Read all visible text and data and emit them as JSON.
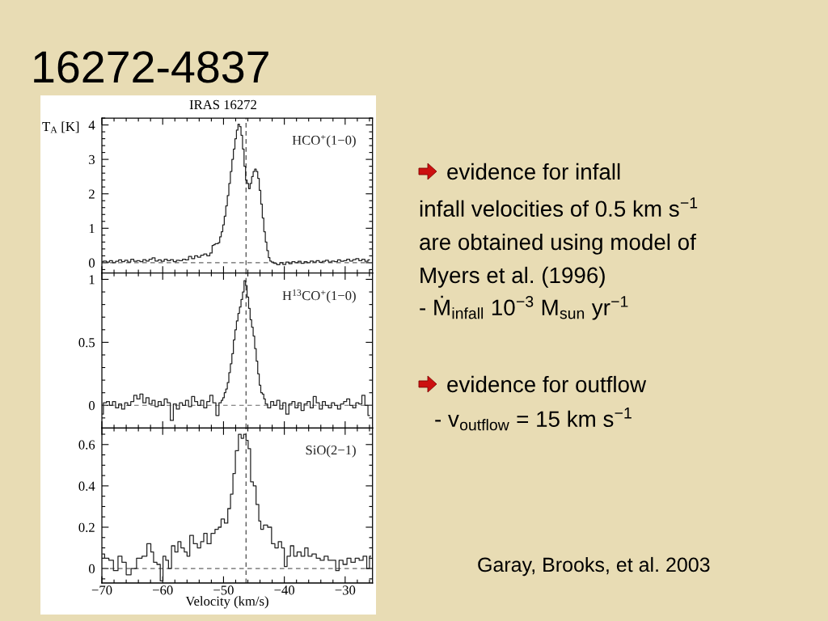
{
  "chart_data": [
    {
      "type": "step",
      "title": "IRAS 16272",
      "ylabel": "T$_{A}$ [K]",
      "series": [
        {
          "name": "HCO$^{+}$(1−0)",
          "color": "#222222",
          "x": [
            -70,
            -69.5,
            -69,
            -68.5,
            -68,
            -67.5,
            -67,
            -66.5,
            -66,
            -65.5,
            -65,
            -64.5,
            -64,
            -63.5,
            -63,
            -62.5,
            -62,
            -61.5,
            -61,
            -60.5,
            -60,
            -59.5,
            -59,
            -58.5,
            -58,
            -57.5,
            -57,
            -56.5,
            -56,
            -55.5,
            -55,
            -54.5,
            -54,
            -53.5,
            -53,
            -52.5,
            -52,
            -51.75,
            -51.5,
            -51.25,
            -51,
            -50.75,
            -50.5,
            -50.25,
            -50,
            -49.75,
            -49.5,
            -49.25,
            -49,
            -48.75,
            -48.5,
            -48.25,
            -48,
            -47.75,
            -47.5,
            -47.25,
            -47,
            -46.75,
            -46.5,
            -46.25,
            -46,
            -45.75,
            -45.5,
            -45.25,
            -45,
            -44.75,
            -44.5,
            -44.25,
            -44,
            -43.75,
            -43.5,
            -43.25,
            -43,
            -42.75,
            -42.5,
            -42.25,
            -42,
            -41.5,
            -41,
            -40.5,
            -40,
            -39.5,
            -39,
            -38.5,
            -38,
            -37.5,
            -37,
            -36.5,
            -36,
            -35.5,
            -35,
            -34.5,
            -34,
            -33.5,
            -33,
            -32.5,
            -32,
            -31.5,
            -31,
            -30.5,
            -30,
            -29.5,
            -29,
            -28.5,
            -28,
            -27.5,
            -27,
            -26.5,
            -26
          ],
          "values": [
            0.03,
            0.05,
            0.02,
            0.06,
            0.0,
            0.04,
            0.08,
            0.03,
            0.07,
            0.02,
            0.1,
            0.04,
            0.06,
            0.03,
            0.09,
            0.05,
            0.1,
            0.14,
            0.05,
            0.08,
            0.04,
            0.1,
            0.06,
            0.09,
            0.03,
            0.07,
            0.06,
            0.1,
            0.08,
            0.18,
            0.12,
            0.2,
            0.16,
            0.22,
            0.25,
            0.2,
            0.28,
            0.5,
            0.52,
            0.55,
            0.55,
            0.58,
            0.75,
            0.9,
            1.1,
            1.35,
            1.65,
            1.95,
            2.3,
            2.65,
            3.0,
            3.3,
            3.6,
            3.85,
            4.02,
            3.95,
            3.7,
            3.3,
            2.8,
            2.4,
            2.3,
            2.15,
            2.3,
            2.5,
            2.65,
            2.72,
            2.65,
            2.45,
            2.1,
            1.7,
            1.3,
            0.9,
            0.6,
            0.35,
            0.15,
            0.05,
            0.02,
            -0.02,
            -0.06,
            0.0,
            -0.05,
            0.02,
            -0.03,
            0.03,
            0.0,
            0.04,
            -0.02,
            0.03,
            0.0,
            0.05,
            0.02,
            0.06,
            0.01,
            0.04,
            0.07,
            0.02,
            0.05,
            0.03,
            0.08,
            0.04,
            0.06,
            0.1,
            0.05,
            0.09,
            0.12,
            0.06,
            0.1,
            0.04,
            0.08
          ]
        }
      ],
      "xlim": [
        -70,
        -25.5
      ],
      "xticks": [
        {
          "value": -70,
          "label": null
        },
        {
          "value": -60,
          "label": null
        },
        {
          "value": -50,
          "label": null
        },
        {
          "value": -40,
          "label": null
        },
        {
          "value": -30,
          "label": null
        }
      ],
      "ylim": [
        -0.3,
        4.2
      ],
      "yticks": [
        0,
        1,
        2,
        3,
        4
      ],
      "tick_labels": "y",
      "ref_lines": [
        {
          "axis": "x",
          "value": -46.3,
          "color": "#333333",
          "line_style": "dashed"
        },
        {
          "axis": "y",
          "value": 0,
          "color": "#666666",
          "line_style": "dashed"
        }
      ]
    },
    {
      "type": "step",
      "series": [
        {
          "name": "H$^{13}$CO$^{+}$(1−0)",
          "color": "#222222",
          "x": [
            -70,
            -69.5,
            -69,
            -68.5,
            -68,
            -67.5,
            -67,
            -66.5,
            -66,
            -65.5,
            -65,
            -64.5,
            -64,
            -63.5,
            -63,
            -62.5,
            -62,
            -61.5,
            -61,
            -60.5,
            -60,
            -59.5,
            -59,
            -58.5,
            -58,
            -57.5,
            -57,
            -56.5,
            -56,
            -55.5,
            -55,
            -54.5,
            -54,
            -53.5,
            -53,
            -52.5,
            -52,
            -51.5,
            -51,
            -50.5,
            -50.25,
            -50,
            -49.75,
            -49.5,
            -49.25,
            -49,
            -48.75,
            -48.5,
            -48.25,
            -48,
            -47.75,
            -47.5,
            -47.25,
            -47,
            -46.75,
            -46.5,
            -46.25,
            -46,
            -45.75,
            -45.5,
            -45.25,
            -45,
            -44.75,
            -44.5,
            -44.25,
            -44,
            -43.75,
            -43.5,
            -43.25,
            -43,
            -42.5,
            -42,
            -41.5,
            -41,
            -40.5,
            -40,
            -39.5,
            -39,
            -38.5,
            -38,
            -37.5,
            -37,
            -36.5,
            -36,
            -35.5,
            -35,
            -34.5,
            -34,
            -33.5,
            -33,
            -32.5,
            -32,
            -31.5,
            -31,
            -30.5,
            -30,
            -29.5,
            -29,
            -28.5,
            -28,
            -27.5,
            -27,
            -26.5,
            -26
          ],
          "values": [
            -0.07,
            0.02,
            0.03,
            0.0,
            0.03,
            -0.02,
            0.01,
            -0.03,
            0.02,
            0.0,
            0.03,
            0.08,
            0.05,
            0.09,
            0.02,
            0.06,
            0.01,
            0.04,
            -0.01,
            0.03,
            0.0,
            0.05,
            0.02,
            -0.12,
            0.01,
            -0.03,
            0.02,
            0.0,
            0.04,
            -0.01,
            0.07,
            0.03,
            0.0,
            0.04,
            -0.02,
            0.03,
            0.08,
            0.02,
            -0.08,
            0.02,
            0.04,
            0.06,
            0.1,
            0.13,
            0.18,
            0.26,
            0.33,
            0.41,
            0.52,
            0.6,
            0.67,
            0.73,
            0.78,
            0.84,
            0.9,
            0.99,
            0.95,
            0.86,
            0.77,
            0.68,
            0.62,
            0.55,
            0.45,
            0.35,
            0.25,
            0.16,
            0.1,
            0.09,
            0.05,
            0.01,
            -0.02,
            0.03,
            0.0,
            0.04,
            -0.03,
            0.02,
            -0.07,
            0.01,
            0.03,
            -0.02,
            0.02,
            -0.04,
            0.01,
            0.03,
            -0.02,
            0.07,
            0.02,
            -0.03,
            0.03,
            0.0,
            -0.02,
            0.02,
            0.0,
            -0.03,
            0.01,
            0.03,
            0.05,
            0.0,
            -0.02,
            0.02,
            0.01,
            0.08,
            0.0,
            -0.08
          ]
        }
      ],
      "xlim": [
        -70,
        -25.5
      ],
      "xticks": [
        {
          "value": -70,
          "label": null
        },
        {
          "value": -60,
          "label": null
        },
        {
          "value": -50,
          "label": null
        },
        {
          "value": -40,
          "label": null
        },
        {
          "value": -30,
          "label": null
        }
      ],
      "ylim": [
        -0.18,
        1.05
      ],
      "yticks": [
        0,
        0.5,
        1
      ],
      "tick_labels": "y",
      "ref_lines": [
        {
          "axis": "x",
          "value": -46.3,
          "color": "#333333",
          "line_style": "dashed"
        },
        {
          "axis": "y",
          "value": 0,
          "color": "#666666",
          "line_style": "dashed"
        }
      ]
    },
    {
      "type": "step",
      "xlabel": "Velocity (km/s)",
      "series": [
        {
          "name": "SiO(2−1)",
          "color": "#222222",
          "x": [
            -69.9,
            -69.2,
            -68.5,
            -67.7,
            -67.0,
            -66.4,
            -65.6,
            -64.8,
            -63.8,
            -63.0,
            -62.2,
            -61.7,
            -61.3,
            -60.6,
            -60.2,
            -59.7,
            -59.3,
            -58.8,
            -58.3,
            -57.7,
            -57.3,
            -56.7,
            -56.2,
            -55.8,
            -55.3,
            -54.6,
            -54.0,
            -53.5,
            -53.0,
            -52.4,
            -51.7,
            -51.1,
            -50.6,
            -50.2,
            -49.5,
            -49.1,
            -48.6,
            -48.3,
            -47.8,
            -47.3,
            -46.9,
            -46.5,
            -46.1,
            -45.8,
            -45.3,
            -44.9,
            -44.4,
            -44.0,
            -43.75,
            -43.1,
            -42.4,
            -41.8,
            -41.3,
            -40.7,
            -40.2,
            -39.8,
            -39.3,
            -38.7,
            -38.2,
            -37.6,
            -36.9,
            -36.4,
            -35.8,
            -35.1,
            -34.4,
            -33.8,
            -33.1,
            -32.5,
            -31.8,
            -31.3,
            -30.7,
            -30.0,
            -29.4,
            -28.7,
            -28.0,
            -27.4,
            -26.7,
            -26.2,
            -25.8
          ],
          "values": [
            0.07,
            0.05,
            0.04,
            -0.01,
            0.06,
            0.03,
            -0.03,
            0.0,
            0.05,
            0.06,
            0.12,
            0.08,
            0.03,
            0.02,
            -0.06,
            0.06,
            0.04,
            0.0,
            0.11,
            0.08,
            0.13,
            0.1,
            0.08,
            0.06,
            0.16,
            0.12,
            0.1,
            0.13,
            0.17,
            0.12,
            0.17,
            0.19,
            0.2,
            0.24,
            0.22,
            0.29,
            0.36,
            0.46,
            0.57,
            0.65,
            0.63,
            0.65,
            0.62,
            0.58,
            0.42,
            0.4,
            0.31,
            0.23,
            0.19,
            0.21,
            0.2,
            0.12,
            0.1,
            0.13,
            0.1,
            0.01,
            0.06,
            0.11,
            0.06,
            0.08,
            0.06,
            0.1,
            0.06,
            0.07,
            0.05,
            0.04,
            0.06,
            0.04,
            0.04,
            -0.01,
            0.04,
            0.02,
            0.05,
            0.03,
            0.05,
            0.04,
            0.06,
            0.0,
            0.06
          ]
        }
      ],
      "xlim": [
        -70,
        -25.5
      ],
      "xticks": [
        {
          "value": -70,
          "label": "−70"
        },
        {
          "value": -60,
          "label": "−60"
        },
        {
          "value": -50,
          "label": "−50"
        },
        {
          "value": -40,
          "label": "−40"
        },
        {
          "value": -30,
          "label": "−30"
        }
      ],
      "ylim": [
        -0.07,
        0.68
      ],
      "yticks": [
        0,
        0.2,
        0.4,
        0.6
      ],
      "ref_lines": [
        {
          "axis": "x",
          "value": -46.3,
          "color": "#333333",
          "line_style": "dashed"
        },
        {
          "axis": "y",
          "value": 0,
          "color": "#666666",
          "line_style": "dashed"
        }
      ]
    },
    {
      "type": "other",
      "title": "16272-4837",
      "annotations": [
        "evidence for infall",
        "infall velocities of 0.5 km s$^{−1}$\nare obtained using model of\nMyers et al. (1996)",
        "- Ṁ$_{infall}$ 10$^{−3}$ M$_{sun}$ yr$^{−1}$",
        "evidence for outflow",
        "- v$_{outflow}$ = 15 km s$^{−1}$",
        "Garay, Brooks, et al. 2003"
      ]
    }
  ]
}
